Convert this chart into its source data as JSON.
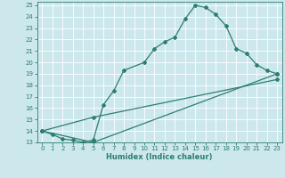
{
  "xlabel": "Humidex (Indice chaleur)",
  "background_color": "#cce8ed",
  "line_color": "#2e7d6e",
  "xlim": [
    -0.5,
    23.5
  ],
  "ylim": [
    13,
    25.3
  ],
  "xticks": [
    0,
    1,
    2,
    3,
    4,
    5,
    6,
    7,
    8,
    9,
    10,
    11,
    12,
    13,
    14,
    15,
    16,
    17,
    18,
    19,
    20,
    21,
    22,
    23
  ],
  "yticks": [
    13,
    14,
    15,
    16,
    17,
    18,
    19,
    20,
    21,
    22,
    23,
    24,
    25
  ],
  "line1_x": [
    0,
    1,
    2,
    3,
    4,
    5,
    6,
    7,
    8,
    10,
    11,
    12,
    13,
    14,
    15,
    16,
    17,
    18,
    19,
    20,
    21,
    22,
    23
  ],
  "line1_y": [
    14.0,
    13.7,
    13.3,
    13.2,
    13.0,
    13.2,
    16.3,
    17.5,
    19.3,
    20.0,
    21.2,
    21.8,
    22.2,
    23.8,
    25.0,
    24.8,
    24.2,
    23.2,
    21.2,
    20.8,
    19.8,
    19.3,
    19.0
  ],
  "line2_x": [
    0,
    5,
    23
  ],
  "line2_y": [
    14.0,
    13.0,
    19.0
  ],
  "line3_x": [
    0,
    5,
    23
  ],
  "line3_y": [
    14.0,
    15.2,
    18.5
  ],
  "tick_fontsize": 5.0,
  "xlabel_fontsize": 6.0,
  "marker_size": 2.0,
  "line_width": 0.9
}
